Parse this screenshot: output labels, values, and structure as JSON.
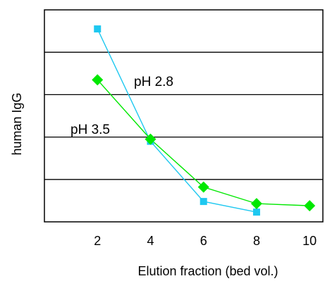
{
  "chart_data": {
    "type": "line",
    "title": "",
    "xlabel": "Elution fraction (bed vol.)",
    "ylabel": "human IgG",
    "x_ticks": [
      "2",
      "4",
      "6",
      "8",
      "10"
    ],
    "xlim": [
      0,
      10.5
    ],
    "ylim": [
      0,
      5
    ],
    "y_ticks_labeled": false,
    "grid": "horizontal",
    "legend": "none",
    "annotations": [
      "pH 2.8",
      "pH 3.5"
    ],
    "series": [
      {
        "name": "",
        "color": "#1ec8f0",
        "marker": "square",
        "points": [
          {
            "x": 2,
            "y": 4.55
          },
          {
            "x": 4,
            "y": 1.9
          },
          {
            "x": 6,
            "y": 0.48
          },
          {
            "x": 8,
            "y": 0.23
          }
        ]
      },
      {
        "name": "",
        "color": "#00e800",
        "marker": "diamond",
        "points": [
          {
            "x": 2,
            "y": 3.35
          },
          {
            "x": 4,
            "y": 1.95
          },
          {
            "x": 6,
            "y": 0.82
          },
          {
            "x": 8,
            "y": 0.43
          },
          {
            "x": 10,
            "y": 0.38
          }
        ]
      }
    ]
  }
}
